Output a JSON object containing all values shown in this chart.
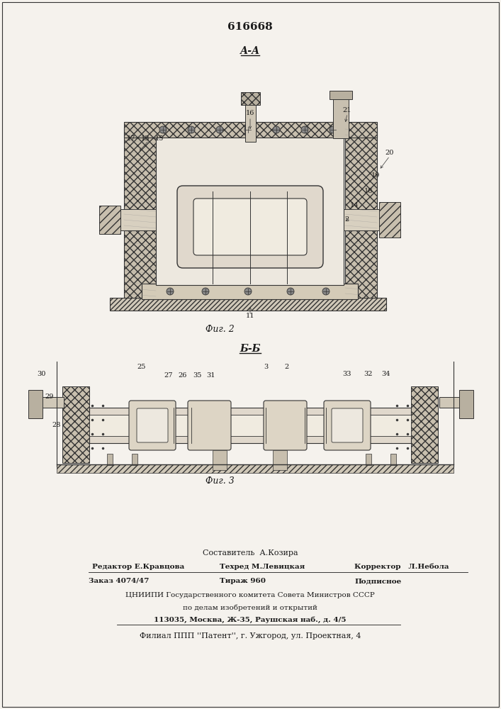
{
  "title_number": "616668",
  "section_label_top": "А-А",
  "section_label_bottom": "Б-Б",
  "fig2_label": "Фиг. 2",
  "fig3_label": "Фиг. 3",
  "footer_line1": "Составитель  А.Козира",
  "footer_line2_parts": [
    "Редактор Е.Кравцова",
    "Техред М.Левицкая",
    "Корректор   Л.Небола"
  ],
  "footer_line3_parts": [
    "Заказ 4074/47",
    "Тираж 960",
    "Подписное"
  ],
  "footer_line4": "ЦНИИПИ Государственного комитета Совета Министров СССР",
  "footer_line5": "по делам изобретений и открытий",
  "footer_line6": "113035, Москва, Ж-35, Раушская наб., д. 4/5",
  "footer_line7": "Филиал ППП ''Патент'', г. Ужгород, ул. Проектная, 4",
  "bg_color": "#f5f2ed",
  "text_color": "#1a1a1a",
  "border_color": "#333333"
}
